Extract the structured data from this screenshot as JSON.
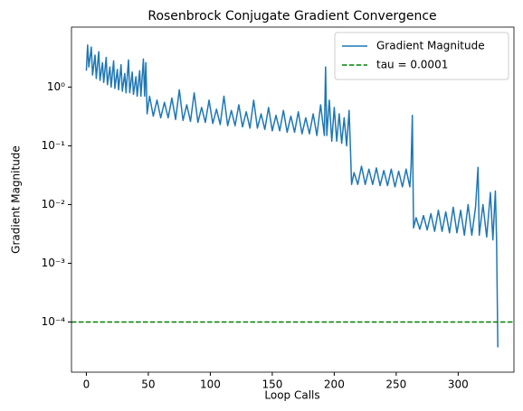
{
  "chart_data": {
    "type": "line",
    "title": "Rosenbrock Conjugate Gradient Convergence",
    "xlabel": "Loop Calls",
    "ylabel": "Gradient Magnitude",
    "x": [
      0,
      1,
      2,
      4,
      5,
      7,
      8,
      10,
      11,
      13,
      14,
      16,
      17,
      19,
      20,
      22,
      23,
      25,
      26,
      28,
      29,
      31,
      32,
      34,
      35,
      37,
      38,
      40,
      41,
      43,
      44,
      46,
      47,
      48,
      49,
      51,
      54,
      57,
      60,
      63,
      66,
      69,
      72,
      75,
      78,
      81,
      84,
      87,
      90,
      93,
      96,
      99,
      102,
      105,
      108,
      111,
      114,
      117,
      120,
      123,
      126,
      129,
      132,
      135,
      138,
      141,
      144,
      147,
      150,
      153,
      156,
      159,
      162,
      165,
      168,
      171,
      174,
      177,
      180,
      183,
      186,
      189,
      192,
      193,
      194,
      196,
      198,
      200,
      202,
      204,
      206,
      208,
      210,
      212,
      213,
      214,
      216,
      219,
      222,
      225,
      228,
      231,
      234,
      237,
      240,
      243,
      246,
      249,
      252,
      255,
      258,
      261,
      262,
      263,
      264,
      266,
      269,
      272,
      275,
      278,
      281,
      284,
      287,
      290,
      293,
      296,
      299,
      302,
      305,
      308,
      311,
      314,
      316,
      317,
      320,
      323,
      326,
      328,
      330,
      331,
      332
    ],
    "series": [
      {
        "name": "Gradient Magnitude",
        "color": "#1f77b4",
        "values": [
          1.9,
          5.2,
          2.2,
          4.8,
          1.6,
          3.5,
          1.4,
          4.0,
          1.3,
          2.6,
          1.2,
          3.2,
          1.1,
          2.2,
          1.0,
          2.8,
          0.95,
          2.0,
          0.9,
          2.4,
          0.85,
          1.7,
          0.8,
          2.9,
          0.8,
          1.8,
          0.75,
          1.5,
          0.7,
          1.9,
          0.7,
          3.0,
          0.7,
          2.6,
          0.35,
          0.7,
          0.32,
          0.6,
          0.3,
          0.55,
          0.3,
          0.65,
          0.28,
          0.9,
          0.27,
          0.5,
          0.26,
          0.8,
          0.25,
          0.45,
          0.25,
          0.6,
          0.24,
          0.42,
          0.23,
          0.7,
          0.22,
          0.4,
          0.22,
          0.5,
          0.21,
          0.38,
          0.2,
          0.6,
          0.2,
          0.35,
          0.19,
          0.45,
          0.18,
          0.33,
          0.18,
          0.4,
          0.17,
          0.32,
          0.17,
          0.38,
          0.16,
          0.3,
          0.16,
          0.35,
          0.15,
          0.5,
          0.15,
          2.2,
          0.15,
          0.6,
          0.12,
          0.45,
          0.12,
          0.35,
          0.11,
          0.3,
          0.1,
          0.4,
          0.1,
          0.022,
          0.035,
          0.022,
          0.045,
          0.022,
          0.04,
          0.022,
          0.042,
          0.021,
          0.038,
          0.021,
          0.04,
          0.02,
          0.037,
          0.02,
          0.04,
          0.02,
          0.045,
          0.33,
          0.004,
          0.006,
          0.0038,
          0.0065,
          0.0037,
          0.007,
          0.0035,
          0.008,
          0.0035,
          0.0075,
          0.0033,
          0.009,
          0.0033,
          0.008,
          0.003,
          0.01,
          0.003,
          0.009,
          0.043,
          0.003,
          0.01,
          0.0028,
          0.016,
          0.0025,
          0.017,
          0.0024,
          3.7e-05
        ]
      }
    ],
    "hlines": [
      {
        "name": "tau = 0.0001",
        "value": 0.0001,
        "color": "#008000",
        "linestyle": "dashed"
      }
    ],
    "xlim": [
      -12,
      345
    ],
    "xticks": [
      0,
      50,
      100,
      150,
      200,
      250,
      300
    ],
    "yscale": "log",
    "ylim": [
      1.4e-05,
      10.5
    ],
    "yticks": [
      {
        "value": 0.0001,
        "label": "10⁻⁴"
      },
      {
        "value": 0.001,
        "label": "10⁻³"
      },
      {
        "value": 0.01,
        "label": "10⁻²"
      },
      {
        "value": 0.1,
        "label": "10⁻¹"
      },
      {
        "value": 1,
        "label": "10⁰"
      }
    ],
    "legend": "upper right"
  }
}
